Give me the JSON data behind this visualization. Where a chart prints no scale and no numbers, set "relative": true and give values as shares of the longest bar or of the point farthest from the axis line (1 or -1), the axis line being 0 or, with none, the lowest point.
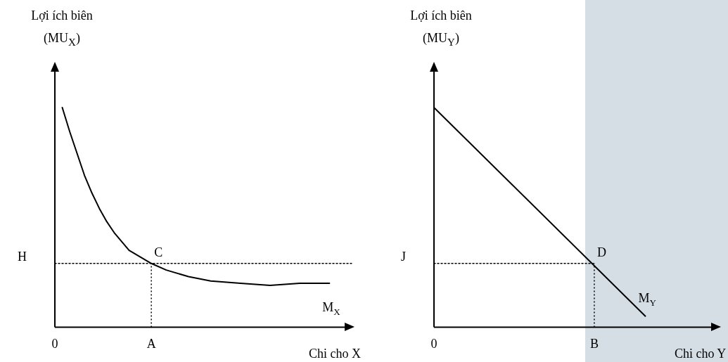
{
  "chart_data": [
    {
      "type": "line",
      "relative": true,
      "ylabel": "Lợi ích biên\n(MU$_{X}$)",
      "xlabel": "Chi cho X",
      "marker": "none",
      "categories": [
        "0",
        null,
        null,
        null,
        null,
        null,
        null,
        null,
        null,
        null,
        null,
        null,
        null,
        "A",
        null,
        null,
        null,
        null,
        null,
        null,
        null,
        null,
        null,
        null,
        null,
        null,
        null,
        null,
        null,
        null,
        null,
        null,
        null,
        null,
        null,
        null,
        null,
        null,
        null,
        null,
        null
      ],
      "series": [
        {
          "name": "M$_{X}$",
          "color": "#000000",
          "values": [
            null,
            1.0,
            0.89,
            0.79,
            0.69,
            0.61,
            0.54,
            0.48,
            0.43,
            0.39,
            0.35,
            0.33,
            null,
            0.29,
            null,
            0.26,
            null,
            null,
            0.23,
            null,
            null,
            0.21,
            null,
            null,
            null,
            0.2,
            null,
            null,
            null,
            0.19,
            null,
            null,
            null,
            0.2,
            null,
            null,
            null,
            0.2,
            null,
            null,
            null
          ]
        },
        {
          "color": "#000000",
          "line_style": "dotted",
          "values": [
            0.29,
            null,
            null,
            null,
            null,
            null,
            null,
            null,
            null,
            null,
            null,
            null,
            null,
            null,
            null,
            null,
            null,
            null,
            null,
            null,
            null,
            null,
            null,
            null,
            null,
            null,
            null,
            null,
            null,
            null,
            null,
            null,
            null,
            null,
            null,
            null,
            null,
            null,
            null,
            null,
            0.29
          ]
        }
      ],
      "ref_lines": [
        {
          "axis": "x",
          "value": "A",
          "color": "#000000",
          "line_style": "dotted"
        }
      ],
      "annotations": [
        {
          "text": "H",
          "x": "0",
          "y": 0.29
        },
        {
          "text": "C",
          "x": "A",
          "y": 0.29
        }
      ]
    },
    {
      "type": "line",
      "relative": true,
      "ylabel": "Lợi ích biên\n(MU$_{Y}$)",
      "xlabel": "Chi cho Y",
      "marker": "none",
      "categories": [
        "0",
        null,
        null,
        null,
        null,
        null,
        null,
        null,
        null,
        null,
        null,
        null,
        null,
        null,
        null,
        null,
        null,
        null,
        null,
        null,
        null,
        null,
        "B",
        null,
        null,
        null,
        null,
        null,
        null,
        null,
        null,
        null,
        null,
        null,
        null,
        null,
        null,
        null,
        null,
        null
      ],
      "series": [
        {
          "name": "M$_{Y}$",
          "color": "#000000",
          "values": [
            1.0,
            null,
            null,
            null,
            null,
            null,
            null,
            null,
            null,
            null,
            null,
            null,
            null,
            null,
            null,
            null,
            null,
            null,
            null,
            null,
            null,
            null,
            null,
            null,
            null,
            null,
            null,
            null,
            null,
            0.05,
            null,
            null,
            null,
            null,
            null,
            null,
            null,
            null,
            null,
            null
          ]
        },
        {
          "color": "#000000",
          "line_style": "dotted",
          "values": [
            0.29,
            null,
            null,
            null,
            null,
            null,
            null,
            null,
            null,
            null,
            null,
            null,
            null,
            null,
            null,
            null,
            null,
            null,
            null,
            null,
            null,
            null,
            0.29,
            null,
            null,
            null,
            null,
            null,
            null,
            null,
            null,
            null,
            null,
            null,
            null,
            null,
            null,
            null,
            null,
            null
          ]
        }
      ],
      "ref_lines": [
        {
          "axis": "x",
          "value": "B",
          "color": "#000000",
          "line_style": "dotted"
        }
      ],
      "annotations": [
        {
          "text": "J",
          "x": "0",
          "y": 0.29
        },
        {
          "text": "D",
          "x": "B",
          "y": 0.29
        }
      ]
    }
  ]
}
